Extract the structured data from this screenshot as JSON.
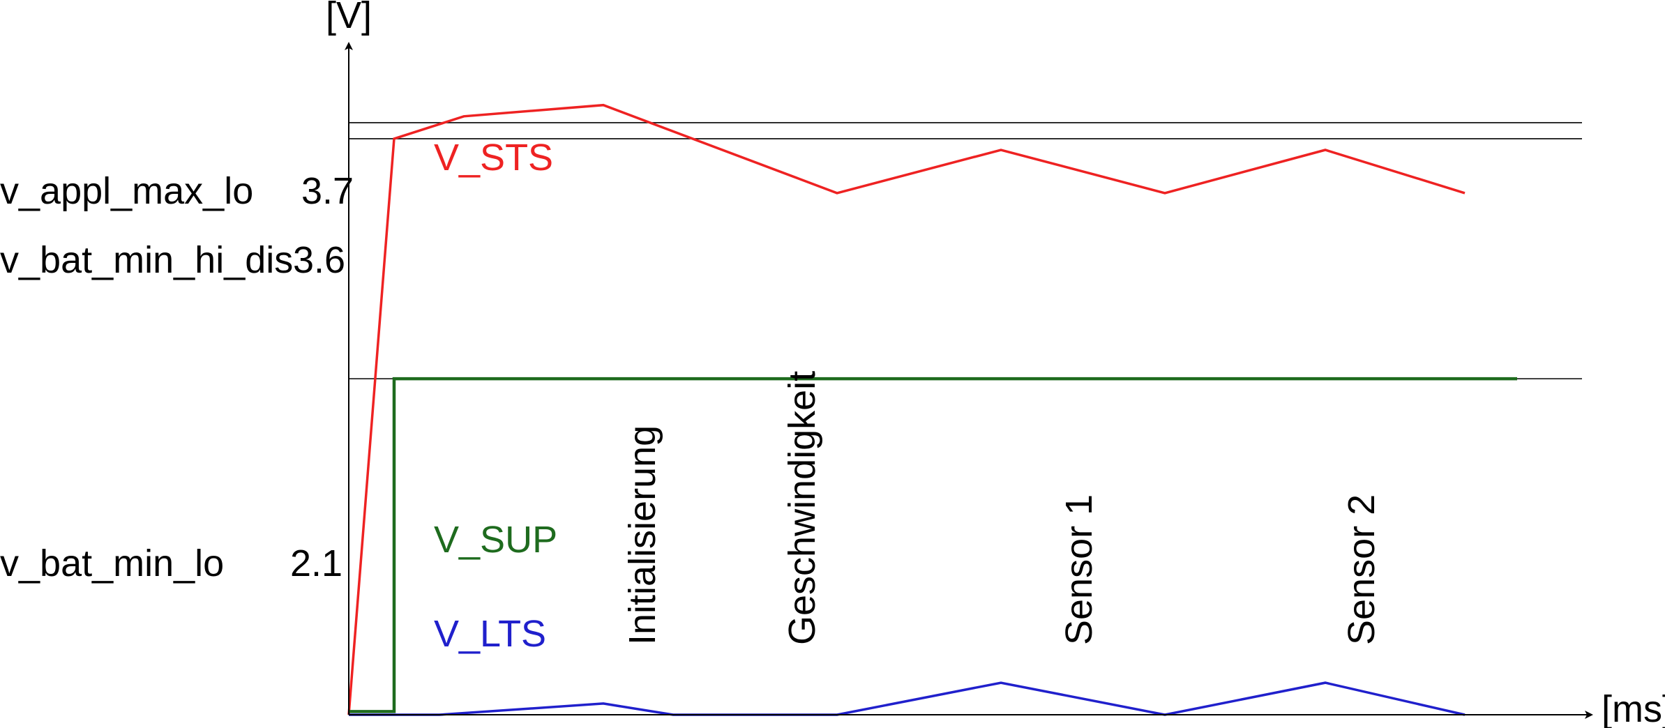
{
  "chart_data": {
    "type": "line",
    "y_unit": "[V]",
    "x_unit": "[ms]",
    "ylim": [
      0,
      4.14
    ],
    "xlim": [
      0,
      1775
    ],
    "thresholds": [
      {
        "name": "v_appl_max_lo",
        "value": 3.7,
        "value_label": "3.7"
      },
      {
        "name": "v_bat_min_hi_dis",
        "value": 3.6,
        "value_label": "3.6"
      },
      {
        "name": "v_bat_min_lo",
        "value": 2.1,
        "value_label": "2.1"
      }
    ],
    "series": [
      {
        "name": "V_STS",
        "color": "#ee2222",
        "x": [
          0,
          65,
          165,
          365,
          700,
          935,
          1170,
          1400,
          1600
        ],
        "y": [
          0.0,
          3.6,
          3.74,
          3.81,
          3.26,
          3.53,
          3.26,
          3.53,
          3.26
        ]
      },
      {
        "name": "V_SUP",
        "color": "#1e6b1e",
        "x": [
          0,
          65,
          65,
          1675
        ],
        "y": [
          0.02,
          0.02,
          2.1,
          2.1
        ]
      },
      {
        "name": "V_LTS",
        "color": "#2020cc",
        "x": [
          0,
          130,
          365,
          465,
          700,
          935,
          1170,
          1400,
          1600
        ],
        "y": [
          0.0,
          0.0,
          0.07,
          0.0,
          0.0,
          0.2,
          0.0,
          0.2,
          0.0
        ]
      }
    ],
    "phase_labels": [
      {
        "text": "Initialisierung",
        "x": 420
      },
      {
        "text": "Geschwindigkeit",
        "x": 648
      },
      {
        "text": "Sensor 1",
        "x": 1045
      },
      {
        "text": "Sensor 2",
        "x": 1450
      }
    ]
  }
}
